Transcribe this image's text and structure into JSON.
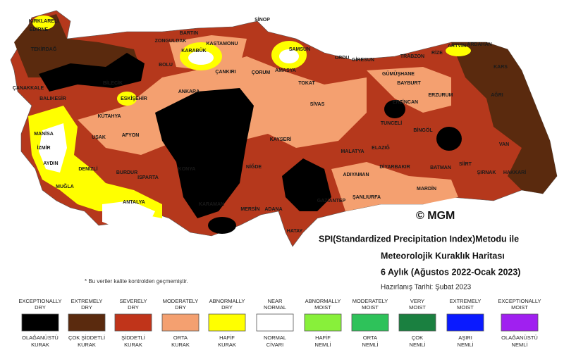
{
  "title": {
    "lines": [
      "SPI(Standardized Precipitation Index)Metodu ile",
      "Meteorolojik Kuraklık Haritası",
      "6 Aylık (Ağustos 2022-Ocak 2023)"
    ]
  },
  "prepared": "Hazırlanış Tarihi: Şubat 2023",
  "copyright": "© MGM",
  "note": "* Bu veriler kalite kontrolden geçmemiştir.",
  "cities": [
    "KIRKLARELİ",
    "EDİRNE",
    "TEKİRDAĞ",
    "ÇANAKKALE",
    "BALIKESİR",
    "BİLECİK",
    "ESKİŞEHİR",
    "KÜTAHYA",
    "MANİSA",
    "İZMİR",
    "UŞAK",
    "AFYON",
    "AYDIN",
    "DENİZLİ",
    "MUĞLA",
    "BURDUR",
    "ISPARTA",
    "ANTALYA",
    "KONYA",
    "KARAMAN",
    "MERSİN",
    "ADANA",
    "HATAY",
    "GAZİANTEP",
    "ŞANLIURFA",
    "ADIYAMAN",
    "MALATYA",
    "ELAZIĞ",
    "TUNCELİ",
    "BİNGÖL",
    "DİYARBAKIR",
    "BATMAN",
    "MARDİN",
    "SİİRT",
    "ŞIRNAK",
    "HAKKARİ",
    "VAN",
    "AĞRI",
    "KARS",
    "ARDAHAN",
    "ARTVİN",
    "RİZE",
    "TRABZON",
    "GÜMÜŞHANE",
    "BAYBURT",
    "ERZURUM",
    "ERZİNCAN",
    "SİVAS",
    "TOKAT",
    "AMASYA",
    "SAMSUN",
    "ORDU",
    "GİRESUN",
    "SİNOP",
    "KASTAMONU",
    "BARTIN",
    "ZONGULDAK",
    "KARABÜK",
    "BOLU",
    "ÇANKIRI",
    "ÇORUM",
    "ANKARA",
    "KAYSERİ",
    "NİĞDE"
  ],
  "legend": [
    {
      "en": [
        "EXCEPTIONALLY",
        "DRY"
      ],
      "tr": [
        "OLAĞANÜSTÜ",
        "KURAK"
      ],
      "color": "#000000"
    },
    {
      "en": [
        "EXTREMELY",
        "DRY"
      ],
      "tr": [
        "ÇOK ŞİDDETLİ",
        "KURAK"
      ],
      "color": "#5a2a0e"
    },
    {
      "en": [
        "SEVERELY",
        "DRY"
      ],
      "tr": [
        "ŞİDDETLİ",
        "KURAK"
      ],
      "color": "#c0341a"
    },
    {
      "en": [
        "MODERATELY",
        "DRY"
      ],
      "tr": [
        "ORTA",
        "KURAK"
      ],
      "color": "#f4a070"
    },
    {
      "en": [
        "ABNORMALLY",
        "DRY"
      ],
      "tr": [
        "HAFİF",
        "KURAK"
      ],
      "color": "#ffff00"
    },
    {
      "en": [
        "NEAR",
        "NORMAL"
      ],
      "tr": [
        "NORMAL",
        "CİVARI"
      ],
      "color": "#ffffff"
    },
    {
      "en": [
        "ABNORMALLY",
        "MOIST"
      ],
      "tr": [
        "HAFİF",
        "NEMLİ"
      ],
      "color": "#88f03a"
    },
    {
      "en": [
        "MODERATELY",
        "MOIST"
      ],
      "tr": [
        "ORTA",
        "NEMLİ"
      ],
      "color": "#2ec25a"
    },
    {
      "en": [
        "VERY",
        "MOIST"
      ],
      "tr": [
        "ÇOK",
        "NEMLİ"
      ],
      "color": "#1a8040"
    },
    {
      "en": [
        "EXTREMELY",
        "MOIST"
      ],
      "tr": [
        "AŞIRI",
        "NEMLİ"
      ],
      "color": "#0a1aff"
    },
    {
      "en": [
        "EXCEPTIONALLY",
        "MOIST"
      ],
      "tr": [
        "OLAĞANÜSTÜ",
        "NEMLİ"
      ],
      "color": "#a020f0"
    }
  ]
}
